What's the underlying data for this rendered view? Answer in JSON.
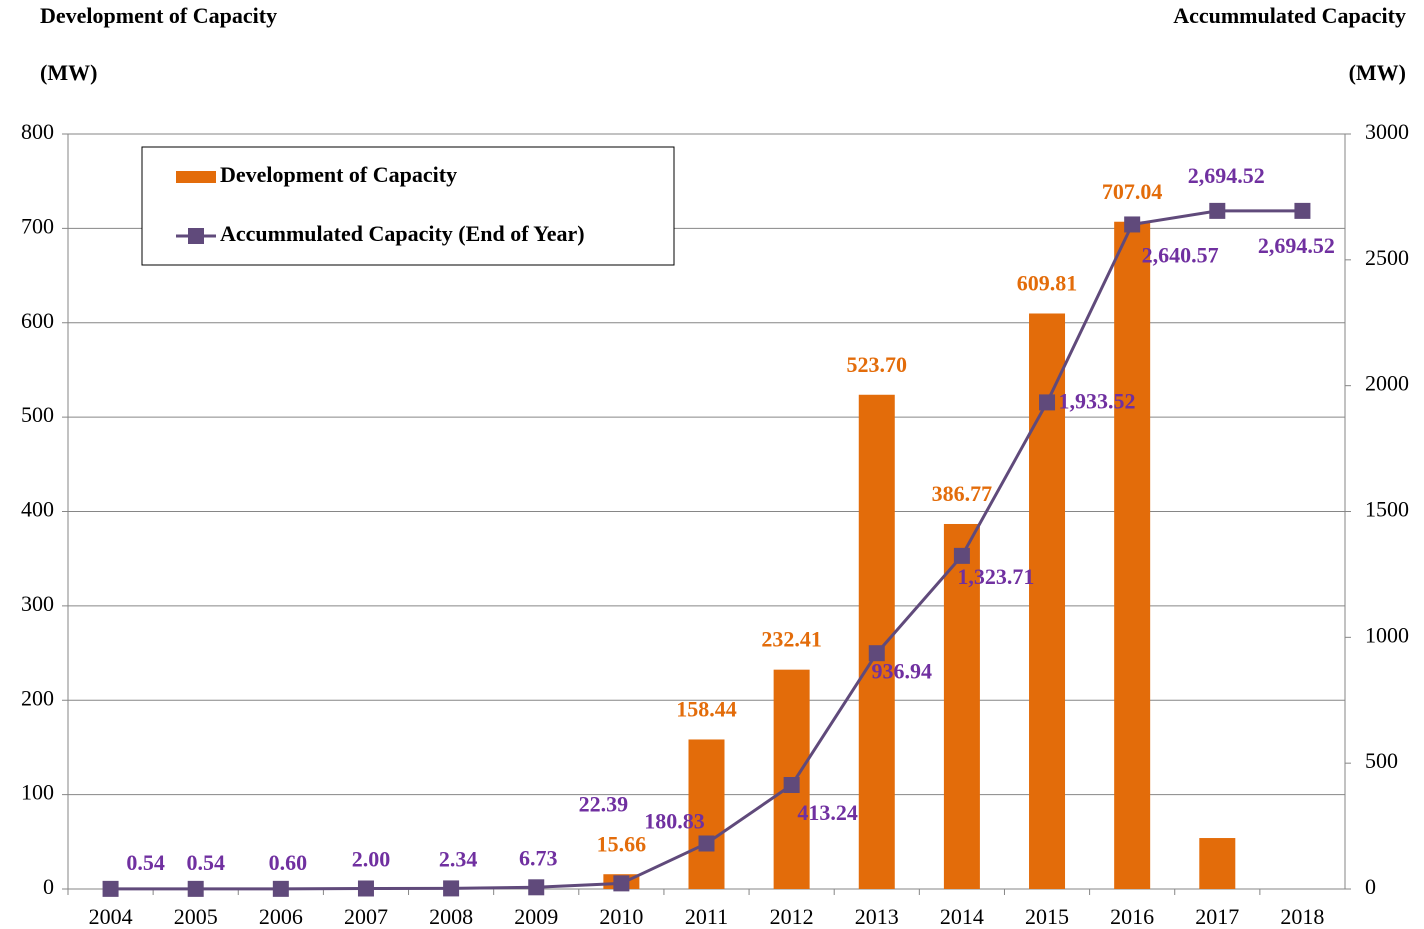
{
  "chart_data": {
    "type": "bar",
    "title": "Development of Capacity",
    "ylabel": "(MW)",
    "y2title": "Accummulated Capacity",
    "y2label": "(MW)",
    "categories": [
      "2004",
      "2005",
      "2006",
      "2007",
      "2008",
      "2009",
      "2010",
      "2011",
      "2012",
      "2013",
      "2014",
      "2015",
      "2016",
      "2017",
      "2018"
    ],
    "series": [
      {
        "name": "Development of Capacity",
        "type": "bar",
        "color": "#E36C0A",
        "values": [
          null,
          null,
          null,
          null,
          null,
          null,
          15.66,
          158.44,
          232.41,
          523.7,
          386.77,
          609.81,
          707.04,
          54,
          null
        ],
        "value_labels": [
          null,
          null,
          null,
          null,
          null,
          null,
          "15.66",
          "158.44",
          "232.41",
          "523.70",
          "386.77",
          "609.81",
          "707.04",
          null,
          null
        ]
      },
      {
        "name": "Accummulated Capacity (End of Year)",
        "type": "line",
        "axis": "y2",
        "color": "#604A7B",
        "label_color": "#7030A0",
        "values": [
          0.54,
          0.54,
          0.6,
          2,
          2.34,
          6.73,
          22.39,
          180.83,
          413.24,
          936.94,
          1323.71,
          1933.52,
          2640.57,
          2694.52,
          2694.52
        ],
        "value_labels": [
          "0.54",
          "0.54",
          "0.60",
          "2.00",
          "2.34",
          "6.73",
          "22.39",
          "180.83",
          "413.24",
          "936.94",
          "1,323.71",
          "1,933.52",
          "2,640.57",
          "2,694.52",
          "2,694.52"
        ]
      }
    ],
    "ylim": [
      0,
      800
    ],
    "yticks": [
      0,
      100,
      200,
      300,
      400,
      500,
      600,
      700,
      800
    ],
    "y2lim": [
      0,
      3000
    ],
    "y2ticks": [
      0,
      500,
      1000,
      1500,
      2000,
      2500,
      3000
    ],
    "grid": true,
    "legend": "upper left"
  }
}
